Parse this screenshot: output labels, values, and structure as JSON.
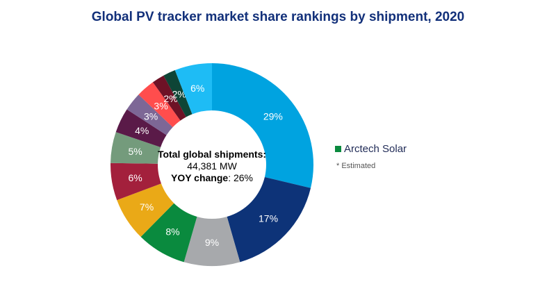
{
  "chart_data": {
    "type": "pie",
    "donut": true,
    "title": "Global PV tracker market share rankings by shipment, 2020",
    "values": [
      29,
      17,
      9,
      8,
      7,
      6,
      5,
      4,
      3,
      3,
      2,
      2,
      6
    ],
    "labels": [
      "29%",
      "17%",
      "9%",
      "8%",
      "7%",
      "6%",
      "5%",
      "4%",
      "3%",
      "3%",
      "2%",
      "2%",
      "6%"
    ],
    "colors": [
      "#00a3e0",
      "#0d3378",
      "#a7a9ac",
      "#0a8a3e",
      "#eaa917",
      "#a3203c",
      "#749b7c",
      "#5a1a48",
      "#7d6796",
      "#ff4d4d",
      "#6e1226",
      "#0e4536",
      "#1ebcf5"
    ],
    "start": "top",
    "direction": "clockwise",
    "legend": {
      "entries": [
        {
          "name": "Arctech Solar",
          "color": "#0a8a3e"
        }
      ],
      "placement": "right"
    },
    "center_text": {
      "line1": "Total global shipments:",
      "line2": "44,381 MW",
      "line3_label": "YOY change",
      "line3_value": ": 26%"
    },
    "note": "* Estimated"
  }
}
